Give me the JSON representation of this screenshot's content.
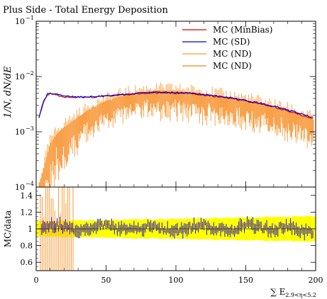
{
  "chart_data": {
    "type": "line",
    "title": "Plus Side - Total Energy Deposition",
    "xlabel": "∑ E",
    "xlabel_sub": "2.9<η<5.2",
    "xlim": [
      0,
      200
    ],
    "x_ticks": [
      0,
      50,
      100,
      150,
      200
    ],
    "x_tick_labels": [
      "0",
      "50",
      "100",
      "150",
      "200"
    ],
    "main_panel": {
      "ylabel": "1/N, dN/dE",
      "yscale": "log",
      "ylim": [
        0.0001,
        0.1
      ],
      "y_ticks": [
        0.0001,
        0.001,
        0.01,
        0.1
      ],
      "y_tick_labels": [
        "10",
        "10",
        "10",
        "10"
      ],
      "y_tick_exponents": [
        "−4",
        "−3",
        "−2",
        "−1"
      ]
    },
    "ratio_panel": {
      "ylabel": "MC/data",
      "ylim": [
        0.5,
        1.5
      ],
      "y_ticks": [
        0.6,
        0.8,
        1.0,
        1.2,
        1.4
      ],
      "y_tick_labels": [
        "0.6",
        "0.8",
        "1",
        "1.2",
        "1.4"
      ],
      "band_color": "#ffff00",
      "band_halfwidth_start": 0.09,
      "band_halfwidth_end": 0.15
    },
    "legend_position": "top-right",
    "series": [
      {
        "name": "MC (MinBias)",
        "color": "#dd0000",
        "x": [
          2,
          5,
          8,
          10,
          15,
          20,
          30,
          40,
          50,
          60,
          70,
          80,
          90,
          100,
          110,
          120,
          130,
          140,
          150,
          160,
          170,
          180,
          190,
          198
        ],
        "y": [
          0.0018,
          0.0033,
          0.0047,
          0.0049,
          0.0046,
          0.0043,
          0.0042,
          0.0042,
          0.0044,
          0.0046,
          0.0048,
          0.005,
          0.0051,
          0.005,
          0.0049,
          0.0046,
          0.0043,
          0.004,
          0.0036,
          0.0032,
          0.0028,
          0.0024,
          0.002,
          0.0017
        ]
      },
      {
        "name": "MC (SD)",
        "color": "#0000dd",
        "x": [
          2,
          5,
          8,
          10,
          15,
          20,
          30,
          40,
          50,
          60,
          70,
          80,
          90,
          100,
          110,
          120,
          130,
          140,
          150,
          160,
          170,
          180,
          190,
          198
        ],
        "y": [
          0.0018,
          0.0034,
          0.0048,
          0.005,
          0.0047,
          0.0044,
          0.0043,
          0.0043,
          0.0045,
          0.0047,
          0.0049,
          0.0051,
          0.0052,
          0.0051,
          0.005,
          0.0047,
          0.0044,
          0.0041,
          0.0037,
          0.0033,
          0.0029,
          0.0025,
          0.0021,
          0.0018
        ]
      },
      {
        "name": "MC (ND)",
        "color": "#ff9933",
        "x": [
          2,
          5,
          8,
          10,
          15,
          20,
          30,
          40,
          50,
          60,
          70,
          80,
          90,
          100,
          110,
          120,
          130,
          140,
          150,
          160,
          170,
          180,
          190,
          198
        ],
        "y": [
          0.0001,
          0.0002,
          0.0004,
          0.0006,
          0.0009,
          0.0012,
          0.0018,
          0.0026,
          0.0034,
          0.0041,
          0.0047,
          0.0051,
          0.0052,
          0.0051,
          0.0049,
          0.0046,
          0.0042,
          0.0039,
          0.0035,
          0.0031,
          0.0027,
          0.0023,
          0.0019,
          0.0016
        ]
      },
      {
        "name": "MC (ND)",
        "color": "#ee8822",
        "x": [
          2,
          5,
          8,
          10,
          15,
          20,
          30,
          40,
          50,
          60,
          70,
          80,
          90,
          100,
          110,
          120,
          130,
          140,
          150,
          160,
          170,
          180,
          190,
          198
        ],
        "y": [
          0.0001,
          0.00018,
          0.00035,
          0.00055,
          0.00085,
          0.0011,
          0.0017,
          0.0025,
          0.0033,
          0.004,
          0.0046,
          0.005,
          0.0051,
          0.005,
          0.0048,
          0.0045,
          0.0041,
          0.0038,
          0.0034,
          0.003,
          0.0026,
          0.0022,
          0.0018,
          0.0015
        ]
      }
    ],
    "ratio_series": {
      "color": "#0000dd",
      "x": [
        5,
        10,
        20,
        30,
        40,
        50,
        60,
        70,
        80,
        90,
        100,
        110,
        120,
        130,
        140,
        150,
        160,
        170,
        180,
        190,
        198
      ],
      "y": [
        1.02,
        1.06,
        1.03,
        0.98,
        1.02,
        1.04,
        0.99,
        1.0,
        1.03,
        1.01,
        0.97,
        1.02,
        1.04,
        1.0,
        0.98,
        1.06,
        1.01,
        0.99,
        1.03,
        0.97,
        0.95
      ]
    }
  }
}
